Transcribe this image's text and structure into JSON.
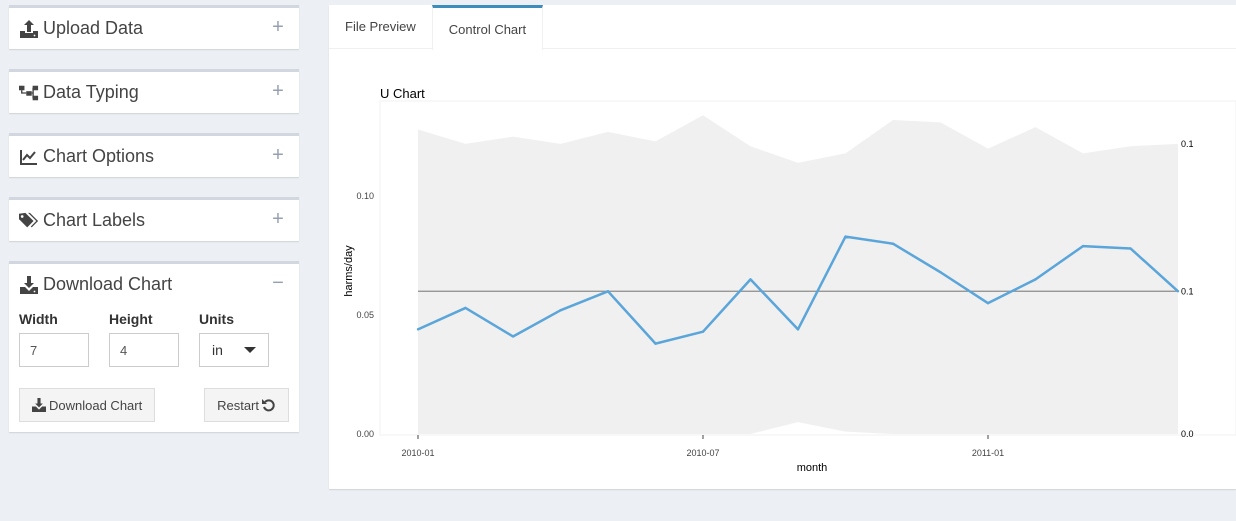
{
  "sidebar": {
    "boxes": [
      {
        "title": "Upload Data",
        "icon": "upload-icon",
        "tool": "+"
      },
      {
        "title": "Data Typing",
        "icon": "sitemap-icon",
        "tool": "+"
      },
      {
        "title": "Chart Options",
        "icon": "line-chart-icon",
        "tool": "+"
      },
      {
        "title": "Chart Labels",
        "icon": "tags-icon",
        "tool": "+"
      },
      {
        "title": "Download Chart",
        "icon": "download-icon",
        "tool": "−"
      }
    ],
    "download": {
      "width_label": "Width",
      "width_value": "7",
      "height_label": "Height",
      "height_value": "4",
      "units_label": "Units",
      "units_value": "in",
      "download_button": "Download Chart",
      "restart_button": "Restart"
    }
  },
  "tabs": [
    {
      "label": "File Preview",
      "active": false
    },
    {
      "label": "Control Chart",
      "active": true
    }
  ],
  "colors": {
    "accent": "#3c8dbc",
    "series": "#5aa5da",
    "band": "#f0f0f0",
    "center": "#8c8c8c"
  },
  "chart_data": {
    "type": "line",
    "title": "U Chart",
    "xlabel": "month",
    "ylabel": "harms/day",
    "x": [
      "2010-01",
      "2010-02",
      "2010-03",
      "2010-04",
      "2010-05",
      "2010-06",
      "2010-07",
      "2010-08",
      "2010-09",
      "2010-10",
      "2010-11",
      "2010-12",
      "2011-01",
      "2011-02",
      "2011-03",
      "2011-04",
      "2011-05"
    ],
    "x_ticks": [
      "2010-01",
      "2010-07",
      "2011-01"
    ],
    "y_ticks": [
      "0.00",
      "0.05",
      "0.10"
    ],
    "ylim": [
      0,
      0.14
    ],
    "series": [
      {
        "values": [
          0.044,
          0.053,
          0.041,
          0.052,
          0.06,
          0.038,
          0.043,
          0.065,
          0.044,
          0.083,
          0.08,
          0.068,
          0.055,
          0.065,
          0.079,
          0.078,
          0.06
        ]
      }
    ],
    "center_line": 0.06,
    "ucl": [
      0.128,
      0.122,
      0.125,
      0.122,
      0.127,
      0.123,
      0.134,
      0.121,
      0.114,
      0.118,
      0.132,
      0.131,
      0.12,
      0.129,
      0.118,
      0.121,
      0.122
    ],
    "lcl": [
      0,
      0,
      0,
      0,
      0,
      0,
      0,
      0,
      0.005,
      0.001,
      0,
      0,
      0,
      0,
      0,
      0,
      0
    ],
    "right_labels": [
      {
        "text": "0.1",
        "value": 0.122
      },
      {
        "text": "0.1",
        "value": 0.06
      },
      {
        "text": "0.0",
        "value": 0.0
      }
    ]
  }
}
